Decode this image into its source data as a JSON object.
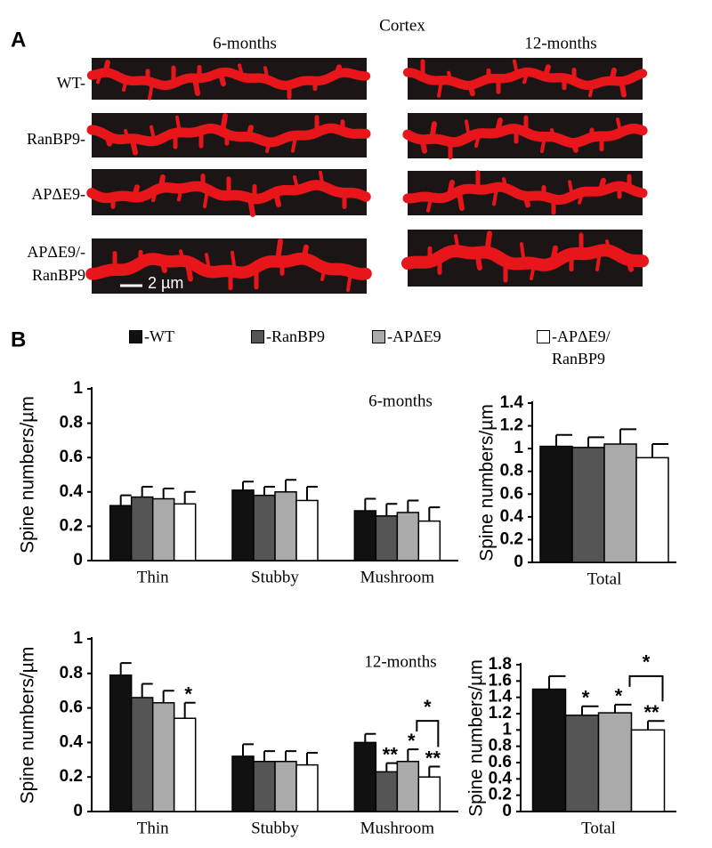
{
  "figure": {
    "panel_a_label": "A",
    "title": "Cortex",
    "columns": [
      "6-months",
      "12-months"
    ],
    "rows": [
      "WT-",
      "RanBP9-",
      "APΔE9-",
      "APΔE9/-\nRanBP9"
    ],
    "scale_bar": "2 µm",
    "panel_b_label": "B"
  },
  "chart_data": [
    {
      "type": "bar",
      "annotation": "6-months",
      "ylabel": "Spine numbers/µm",
      "categories": [
        "Thin",
        "Stubby",
        "Mushroom"
      ],
      "ylim": [
        0,
        1
      ],
      "yticks": [
        0,
        0.2,
        0.4,
        0.6,
        0.8,
        1
      ],
      "series": [
        {
          "name": "-WT",
          "color": "#111111",
          "values": [
            0.32,
            0.41,
            0.29
          ],
          "errors": [
            0.06,
            0.05,
            0.07
          ]
        },
        {
          "name": "-RanBP9",
          "color": "#555555",
          "values": [
            0.37,
            0.38,
            0.26
          ],
          "errors": [
            0.06,
            0.05,
            0.07
          ]
        },
        {
          "name": "-APΔE9",
          "color": "#aaaaaa",
          "values": [
            0.36,
            0.4,
            0.28
          ],
          "errors": [
            0.06,
            0.07,
            0.07
          ]
        },
        {
          "name": "-APΔE9/\nRanBP9",
          "color": "#ffffff",
          "values": [
            0.33,
            0.35,
            0.23
          ],
          "errors": [
            0.07,
            0.08,
            0.08
          ]
        }
      ]
    },
    {
      "type": "bar",
      "ylabel": "Spine numbers/µm",
      "categories": [
        "Total"
      ],
      "ylim": [
        0,
        1.4
      ],
      "yticks": [
        0,
        0.2,
        0.4,
        0.6,
        0.8,
        1,
        1.2,
        1.4
      ],
      "series": [
        {
          "color": "#111111",
          "values": [
            1.02
          ],
          "errors": [
            0.1
          ]
        },
        {
          "color": "#555555",
          "values": [
            1.01
          ],
          "errors": [
            0.09
          ]
        },
        {
          "color": "#aaaaaa",
          "values": [
            1.04
          ],
          "errors": [
            0.13
          ]
        },
        {
          "color": "#ffffff",
          "values": [
            0.92
          ],
          "errors": [
            0.12
          ]
        }
      ]
    },
    {
      "type": "bar",
      "annotation": "12-months",
      "ylabel": "Spine numbers/µm",
      "categories": [
        "Thin",
        "Stubby",
        "Mushroom"
      ],
      "ylim": [
        0,
        1
      ],
      "yticks": [
        0,
        0.2,
        0.4,
        0.6,
        0.8,
        1
      ],
      "bracket_label": "*",
      "series": [
        {
          "color": "#111111",
          "values": [
            0.79,
            0.32,
            0.4
          ],
          "errors": [
            0.07,
            0.07,
            0.05
          ],
          "significance": [
            null,
            null,
            null
          ]
        },
        {
          "color": "#555555",
          "values": [
            0.66,
            0.29,
            0.23
          ],
          "errors": [
            0.08,
            0.06,
            0.05
          ],
          "significance": [
            null,
            null,
            "**"
          ]
        },
        {
          "color": "#aaaaaa",
          "values": [
            0.63,
            0.29,
            0.29
          ],
          "errors": [
            0.07,
            0.06,
            0.07
          ],
          "significance": [
            null,
            null,
            "*"
          ]
        },
        {
          "color": "#ffffff",
          "values": [
            0.54,
            0.27,
            0.2
          ],
          "errors": [
            0.09,
            0.07,
            0.06
          ],
          "significance": [
            "*",
            null,
            "**"
          ]
        }
      ]
    },
    {
      "type": "bar",
      "ylabel": "Spine numbers/µm",
      "categories": [
        "Total"
      ],
      "ylim": [
        0,
        1.8
      ],
      "yticks": [
        0,
        0.2,
        0.4,
        0.6,
        0.8,
        1,
        1.2,
        1.4,
        1.6,
        1.8
      ],
      "bracket_label": "*",
      "series": [
        {
          "color": "#111111",
          "values": [
            1.5
          ],
          "errors": [
            0.16
          ],
          "significance": [
            null
          ]
        },
        {
          "color": "#555555",
          "values": [
            1.18
          ],
          "errors": [
            0.11
          ],
          "significance": [
            "*"
          ]
        },
        {
          "color": "#aaaaaa",
          "values": [
            1.21
          ],
          "errors": [
            0.1
          ],
          "significance": [
            "*"
          ]
        },
        {
          "color": "#ffffff",
          "values": [
            1.0
          ],
          "errors": [
            0.11
          ],
          "significance": [
            "**"
          ]
        }
      ]
    }
  ]
}
